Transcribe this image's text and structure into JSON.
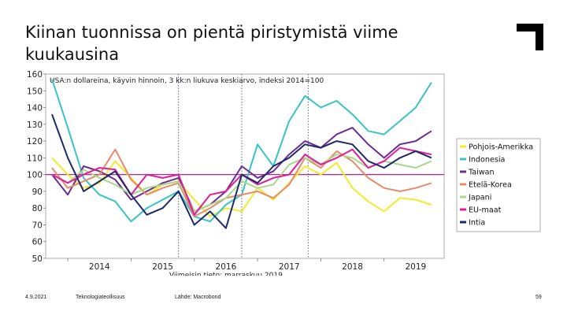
{
  "slide": {
    "title": "Kiinan tuonnissa on pientä piristymistä viime kuukausina",
    "date": "4.9.2021",
    "organization": "Teknologiateollisuus",
    "source": "Lähde: Macrobond",
    "page_number": "59"
  },
  "colors": {
    "Pohjois-Amerikka": "#f2ec2b",
    "Indonesia": "#38c4c4",
    "Taiwan": "#6a2d91",
    "Etelä-Korea": "#e88a6a",
    "Japani": "#a8d98a",
    "EU-maat": "#e31d9a",
    "Intia": "#1f2a6b",
    "reference_line": "#c0208c"
  },
  "chart_data": {
    "type": "line",
    "title": "",
    "subtitle": "USA:n dollareina, käyvin hinnoin, 3 kk:n liukuva keskiarvo, indeksi 2014=100",
    "footnote": "Viimeisin tieto: marraskuu 2019",
    "xlabel": "",
    "ylabel": "",
    "ylim": [
      50,
      160
    ],
    "xlim": [
      2013.65,
      2019.95
    ],
    "yticks": [
      50,
      60,
      70,
      80,
      90,
      100,
      110,
      120,
      130,
      140,
      150,
      160
    ],
    "xtick_labels": [
      "2014",
      "2015",
      "2016",
      "2017",
      "2018",
      "2019"
    ],
    "xtick_positions": [
      2014.5,
      2015.5,
      2016.5,
      2017.5,
      2018.5,
      2019.5
    ],
    "reference_line": 100,
    "dotted_vlines": [
      2015.75,
      2016.75,
      2017.8
    ],
    "legend_position": "right",
    "series": [
      {
        "name": "Pohjois-Amerikka",
        "x": [
          2013.75,
          2014.0,
          2014.25,
          2014.5,
          2014.75,
          2015.0,
          2015.25,
          2015.5,
          2015.75,
          2016.0,
          2016.25,
          2016.5,
          2016.75,
          2017.0,
          2017.25,
          2017.5,
          2017.75,
          2018.0,
          2018.25,
          2018.5,
          2018.75,
          2019.0,
          2019.25,
          2019.5,
          2019.75
        ],
        "values": [
          110,
          100,
          92,
          95,
          108,
          98,
          88,
          94,
          96,
          85,
          75,
          80,
          78,
          92,
          85,
          95,
          105,
          100,
          107,
          92,
          84,
          78,
          86,
          85,
          82
        ]
      },
      {
        "name": "Indonesia",
        "x": [
          2013.75,
          2014.0,
          2014.25,
          2014.5,
          2014.75,
          2015.0,
          2015.25,
          2015.5,
          2015.75,
          2016.0,
          2016.25,
          2016.5,
          2016.75,
          2017.0,
          2017.25,
          2017.5,
          2017.75,
          2018.0,
          2018.25,
          2018.5,
          2018.75,
          2019.0,
          2019.25,
          2019.5,
          2019.75
        ],
        "values": [
          157,
          128,
          98,
          88,
          84,
          72,
          80,
          85,
          90,
          75,
          72,
          82,
          88,
          118,
          105,
          132,
          147,
          140,
          144,
          136,
          126,
          124,
          132,
          140,
          155
        ]
      },
      {
        "name": "Taiwan",
        "x": [
          2013.75,
          2014.0,
          2014.25,
          2014.5,
          2014.75,
          2015.0,
          2015.25,
          2015.5,
          2015.75,
          2016.0,
          2016.25,
          2016.5,
          2016.75,
          2017.0,
          2017.25,
          2017.5,
          2017.75,
          2018.0,
          2018.25,
          2018.5,
          2018.75,
          2019.0,
          2019.25,
          2019.5,
          2019.75
        ],
        "values": [
          100,
          88,
          105,
          102,
          97,
          85,
          90,
          95,
          98,
          78,
          82,
          90,
          105,
          98,
          102,
          112,
          120,
          116,
          124,
          128,
          118,
          110,
          118,
          120,
          126
        ]
      },
      {
        "name": "Etelä-Korea",
        "x": [
          2013.75,
          2014.0,
          2014.25,
          2014.5,
          2014.75,
          2015.0,
          2015.25,
          2015.5,
          2015.75,
          2016.0,
          2016.25,
          2016.5,
          2016.75,
          2017.0,
          2017.25,
          2017.5,
          2017.75,
          2018.0,
          2018.25,
          2018.5,
          2018.75,
          2019.0,
          2019.25,
          2019.5,
          2019.75
        ],
        "values": [
          104,
          92,
          96,
          100,
          115,
          97,
          88,
          92,
          95,
          75,
          80,
          86,
          88,
          90,
          86,
          94,
          110,
          104,
          114,
          108,
          98,
          92,
          90,
          92,
          95
        ]
      },
      {
        "name": "Japani",
        "x": [
          2013.75,
          2014.0,
          2014.25,
          2014.5,
          2014.75,
          2015.0,
          2015.25,
          2015.5,
          2015.75,
          2016.0,
          2016.25,
          2016.5,
          2016.75,
          2017.0,
          2017.25,
          2017.5,
          2017.75,
          2018.0,
          2018.25,
          2018.5,
          2018.75,
          2019.0,
          2019.25,
          2019.5,
          2019.75
        ],
        "values": [
          100,
          95,
          103,
          98,
          94,
          88,
          92,
          94,
          96,
          78,
          82,
          86,
          96,
          92,
          94,
          106,
          110,
          106,
          112,
          110,
          104,
          108,
          106,
          104,
          108
        ]
      },
      {
        "name": "EU-maat",
        "x": [
          2013.75,
          2014.0,
          2014.25,
          2014.5,
          2014.75,
          2015.0,
          2015.25,
          2015.5,
          2015.75,
          2016.0,
          2016.25,
          2016.5,
          2016.75,
          2017.0,
          2017.25,
          2017.5,
          2017.75,
          2018.0,
          2018.25,
          2018.5,
          2018.75,
          2019.0,
          2019.25,
          2019.5,
          2019.75
        ],
        "values": [
          100,
          95,
          100,
          104,
          103,
          88,
          100,
          98,
          100,
          76,
          88,
          90,
          100,
          94,
          98,
          100,
          112,
          106,
          110,
          115,
          104,
          108,
          116,
          114,
          112
        ]
      },
      {
        "name": "Intia",
        "x": [
          2013.75,
          2014.0,
          2014.25,
          2014.5,
          2014.75,
          2015.0,
          2015.25,
          2015.5,
          2015.75,
          2016.0,
          2016.25,
          2016.5,
          2016.75,
          2017.0,
          2017.25,
          2017.5,
          2017.75,
          2018.0,
          2018.25,
          2018.5,
          2018.75,
          2019.0,
          2019.25,
          2019.5,
          2019.75
        ],
        "values": [
          136,
          110,
          90,
          96,
          102,
          88,
          76,
          80,
          90,
          70,
          78,
          68,
          100,
          95,
          105,
          110,
          118,
          116,
          120,
          118,
          108,
          104,
          110,
          114,
          110
        ]
      }
    ]
  }
}
